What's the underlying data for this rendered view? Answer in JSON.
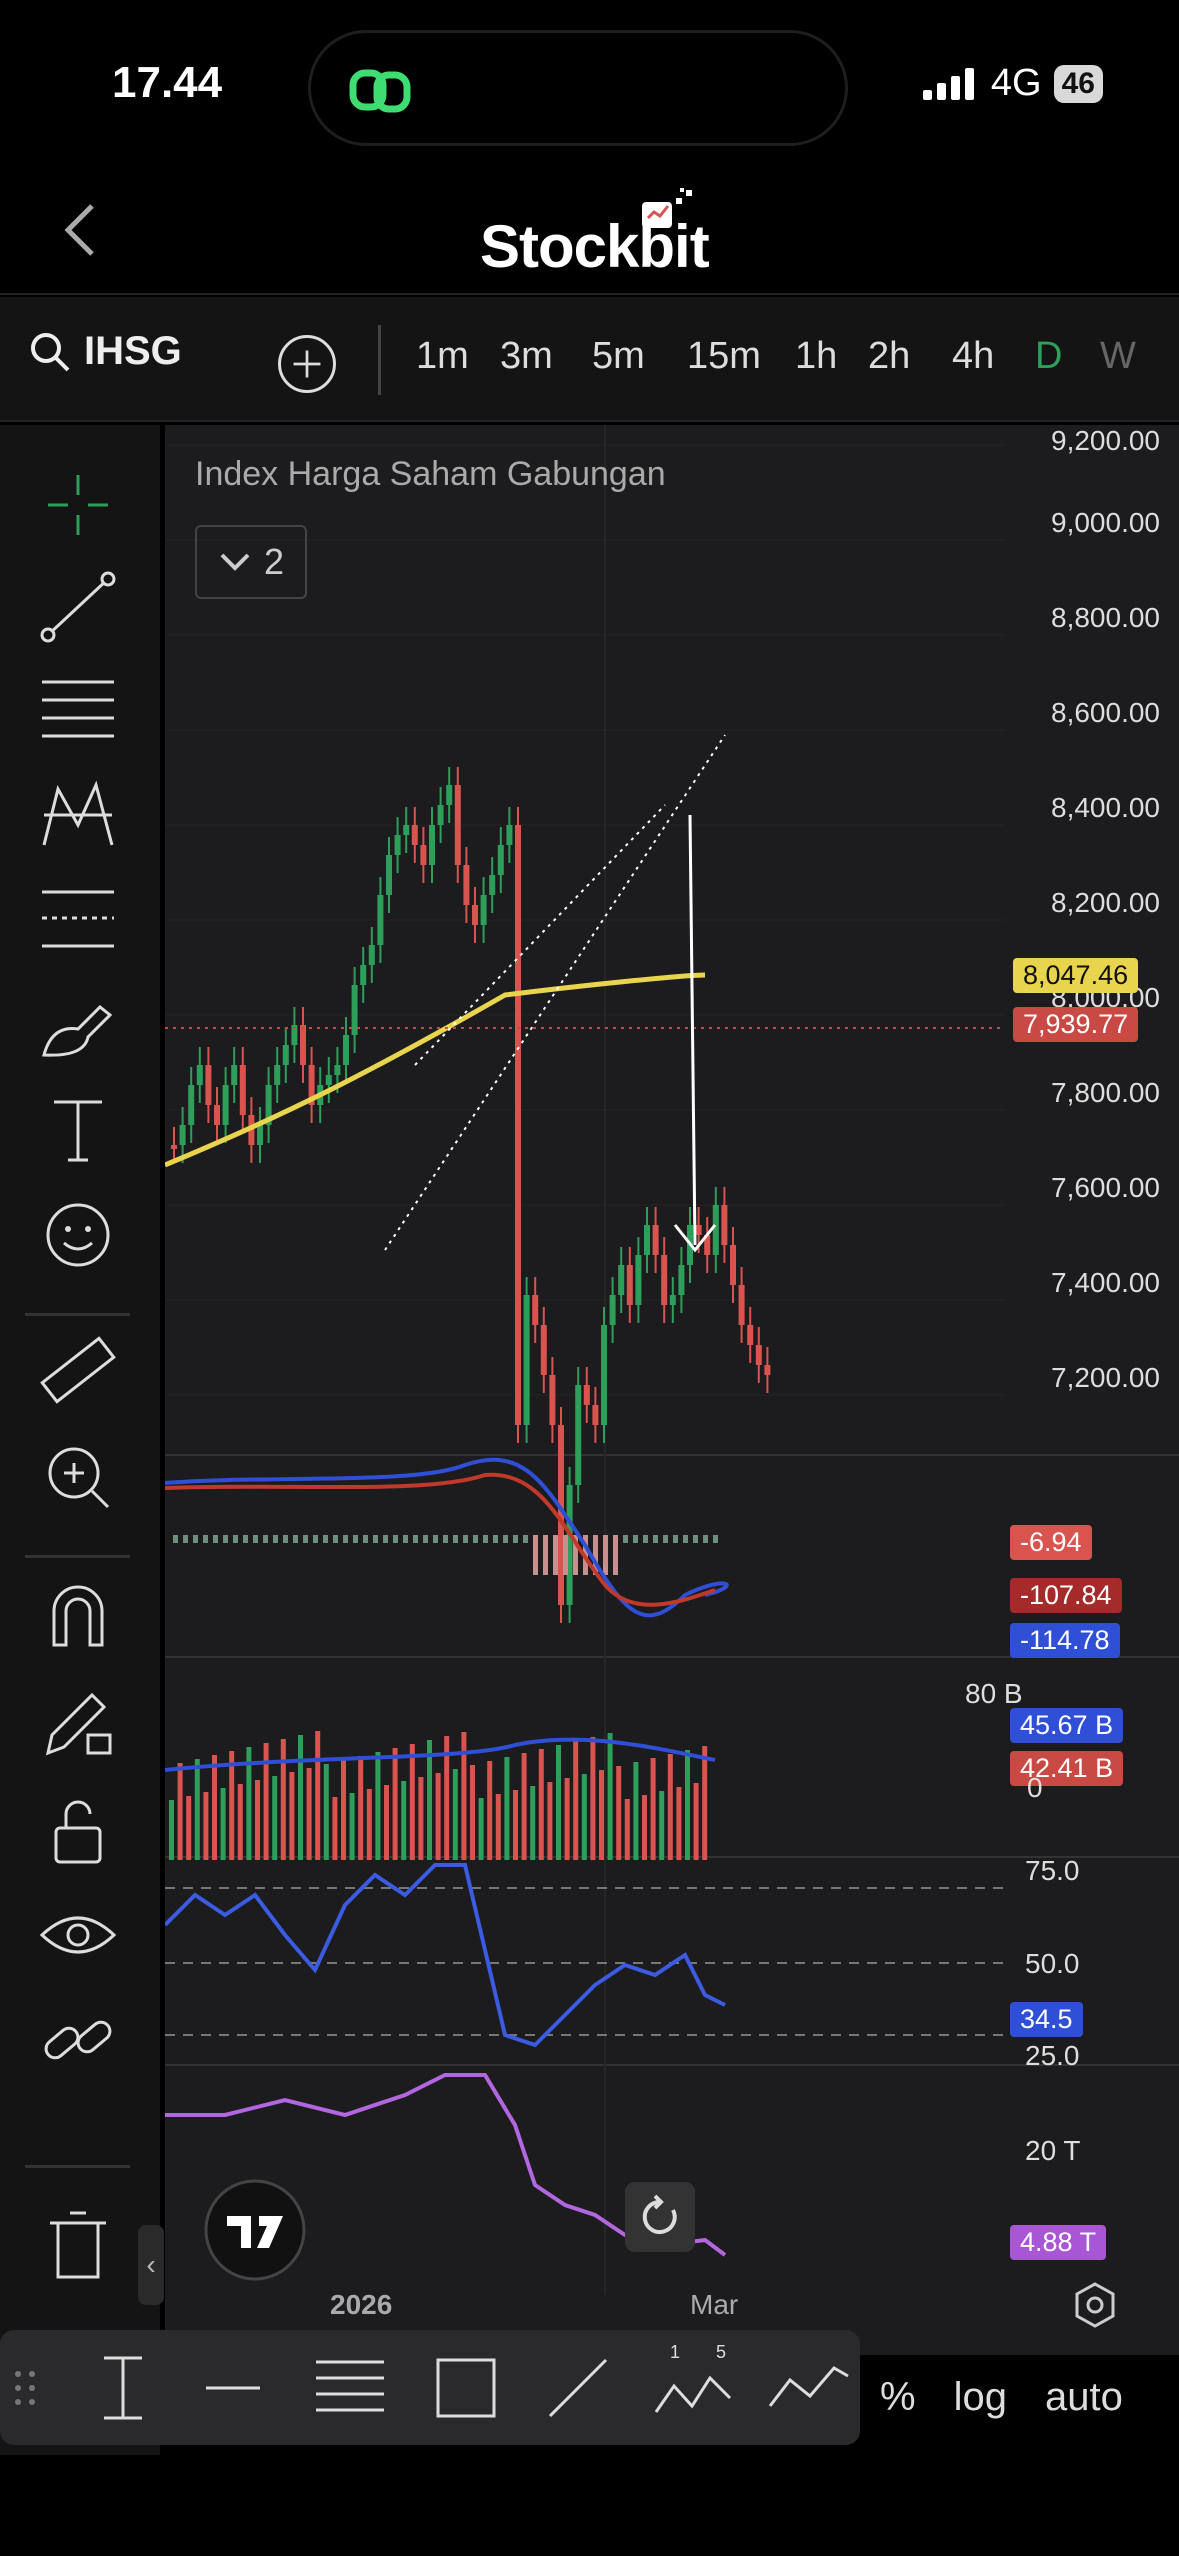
{
  "status": {
    "time": "17.44",
    "network": "4G",
    "battery": "46"
  },
  "header": {
    "brand": "Stockbit"
  },
  "toolbar": {
    "symbol": "IHSG",
    "timeframes": [
      "1m",
      "3m",
      "5m",
      "15m",
      "1h",
      "2h",
      "4h",
      "D",
      "W"
    ],
    "active_timeframe": "D"
  },
  "chart": {
    "title": "Index Harga Saham Gabungan",
    "collapse_count": "2",
    "price_axis": [
      "9,200.00",
      "9,000.00",
      "8,800.00",
      "8,600.00",
      "8,400.00",
      "8,200.00",
      "8,000.00",
      "7,800.00",
      "7,600.00",
      "7,400.00",
      "7,200.00"
    ],
    "ma_label": "8,047.46",
    "last_price_label": "7,939.77",
    "macd_labels": [
      "-6.94",
      "-107.84",
      "-114.78"
    ],
    "volume_axis": [
      "80 B",
      "0"
    ],
    "volume_labels": [
      "45.67 B",
      "42.41 B"
    ],
    "rsi_axis": [
      "75.0",
      "50.0",
      "25.0"
    ],
    "rsi_label": "34.5",
    "value_axis": [
      "20 T"
    ],
    "value_label": "4.88 T",
    "time_axis": [
      "2026",
      "Mar"
    ],
    "colors": {
      "up": "#2e9e5b",
      "down": "#d9534f",
      "ma": "#e8d44d",
      "macd": "#2f4fd6",
      "signal": "#c0392b",
      "rsi": "#3b5be0",
      "value": "#b266e0",
      "active_tf": "#2e9e5b"
    }
  },
  "bottom": {
    "percent": "%",
    "log": "log",
    "auto": "auto"
  }
}
